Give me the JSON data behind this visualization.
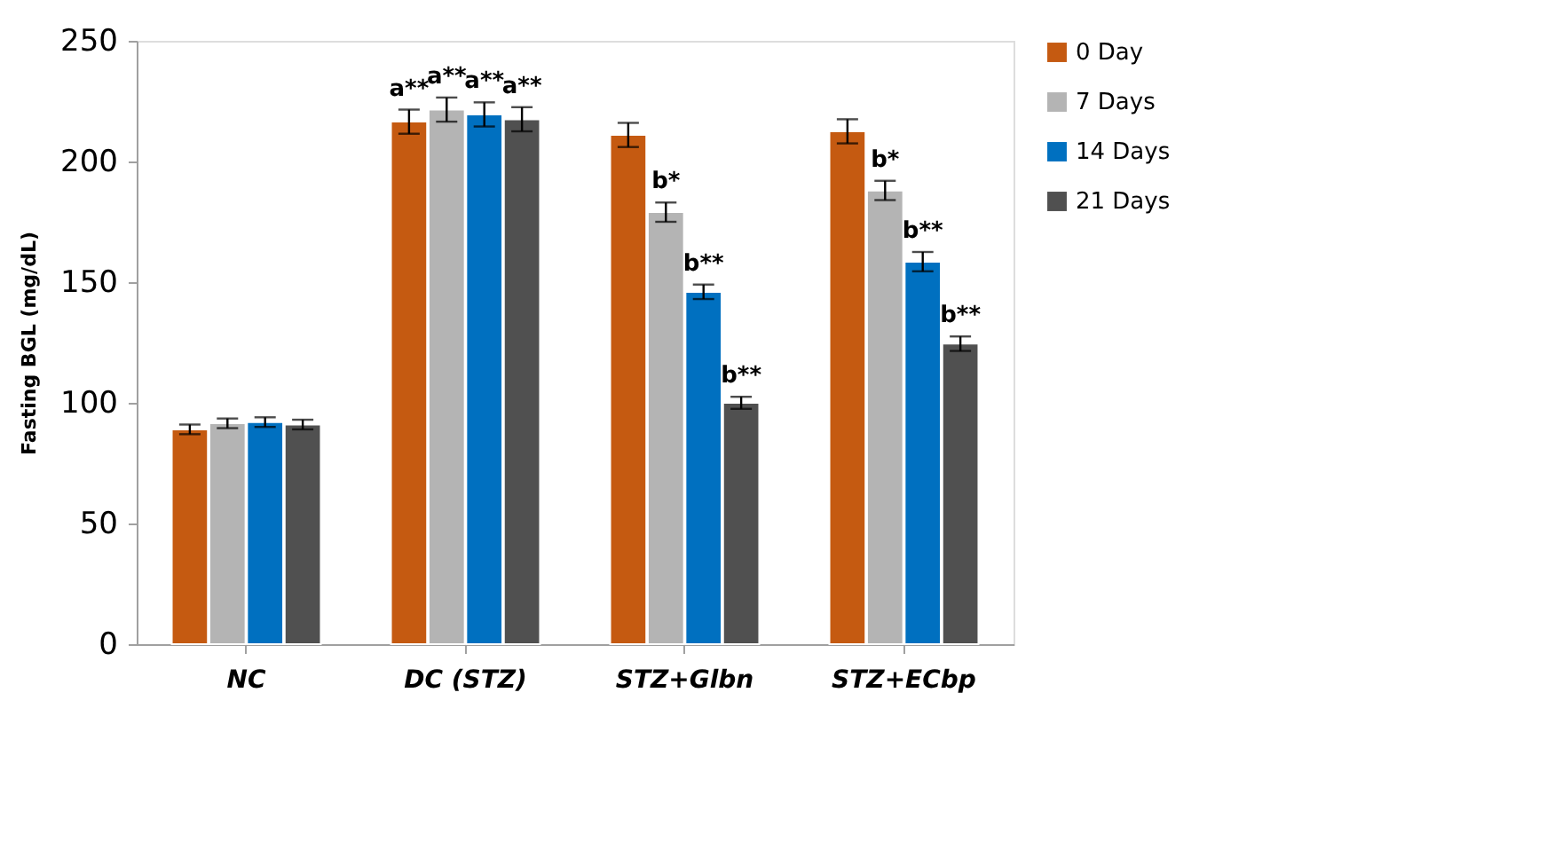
{
  "chart_data": {
    "type": "bar",
    "ylabel": "Fasting BGL (mg/dL)",
    "categories": [
      "NC",
      "DC (STZ)",
      "STZ+Glbn",
      "STZ+ECbp"
    ],
    "series": [
      {
        "name": "0 Day",
        "color": "#c55a11",
        "values": [
          89,
          216.5,
          211,
          212.5
        ],
        "errors": [
          2,
          5,
          5,
          5
        ],
        "value_labels": [
          null,
          "a**",
          null,
          null
        ]
      },
      {
        "name": "7 Days",
        "color": "#b4b4b4",
        "values": [
          91.5,
          221.5,
          179,
          188
        ],
        "errors": [
          2,
          5,
          4,
          4
        ],
        "value_labels": [
          null,
          "a**",
          "b*",
          "b*"
        ]
      },
      {
        "name": "14 Days",
        "color": "#0070c0",
        "values": [
          92,
          219.5,
          146,
          158.5
        ],
        "errors": [
          2,
          5,
          3,
          4
        ],
        "value_labels": [
          null,
          "a**",
          "b**",
          "b**"
        ]
      },
      {
        "name": "21 Days",
        "color": "#505050",
        "values": [
          91,
          217.5,
          100,
          124.5
        ],
        "errors": [
          2,
          5,
          2.5,
          3
        ],
        "value_labels": [
          null,
          "a**",
          "b**",
          "b**"
        ]
      }
    ],
    "ylim": [
      0,
      250
    ],
    "yticks": [
      0,
      50,
      100,
      150,
      200,
      250
    ],
    "grid": false,
    "legend": "top right"
  }
}
